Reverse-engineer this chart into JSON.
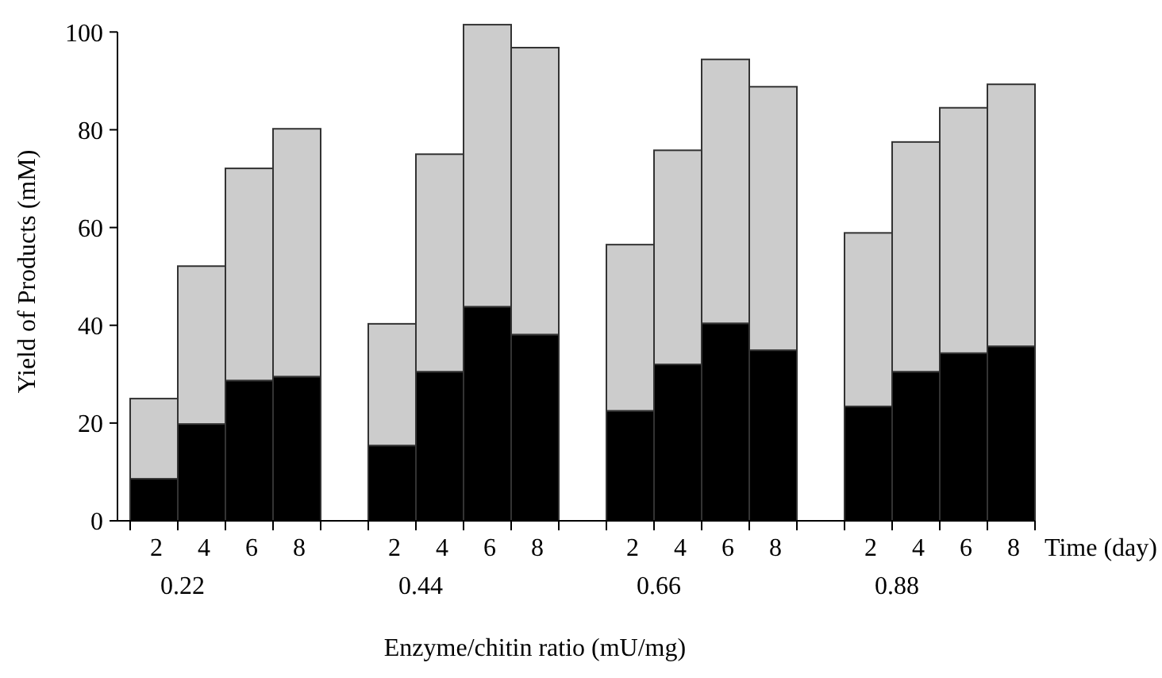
{
  "chart_data": {
    "type": "bar",
    "stacked": true,
    "ylabel": "Yield of Products (mM)",
    "xlabel": "Enzyme/chitin ratio (mU/mg)",
    "categories": [
      "2",
      "4",
      "6",
      "8",
      null,
      "2",
      "4",
      "6",
      "8",
      null,
      "2",
      "4",
      "6",
      "8",
      null,
      "2",
      "4",
      "6",
      "8"
    ],
    "series": [
      {
        "color": "#000000",
        "values": [
          8.6,
          19.8,
          28.7,
          29.5,
          null,
          15.4,
          30.5,
          43.8,
          38.1,
          null,
          22.5,
          32,
          40.4,
          34.9,
          null,
          23.4,
          30.5,
          34.3,
          35.7
        ]
      },
      {
        "color": "#cccccc",
        "values": [
          16.4,
          32.3,
          43.4,
          50.7,
          null,
          24.9,
          44.5,
          57.7,
          58.7,
          null,
          34,
          43.8,
          54,
          53.9,
          null,
          35.5,
          47,
          50.2,
          53.6
        ]
      }
    ],
    "ylim": [
      0,
      102
    ],
    "yticks": [
      0,
      20,
      40,
      60,
      80,
      100
    ],
    "grid": false,
    "annotations": [
      "0.22",
      "0.44",
      "0.66",
      "0.88",
      "Time (day)"
    ]
  }
}
